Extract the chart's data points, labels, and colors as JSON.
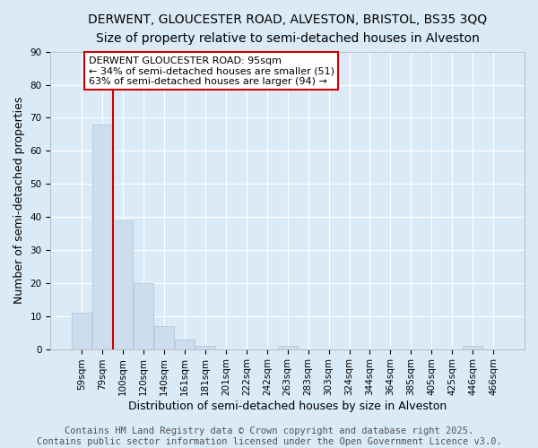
{
  "title_line1": "DERWENT, GLOUCESTER ROAD, ALVESTON, BRISTOL, BS35 3QQ",
  "title_line2": "Size of property relative to semi-detached houses in Alveston",
  "categories": [
    "59sqm",
    "79sqm",
    "100sqm",
    "120sqm",
    "140sqm",
    "161sqm",
    "181sqm",
    "201sqm",
    "222sqm",
    "242sqm",
    "263sqm",
    "283sqm",
    "303sqm",
    "324sqm",
    "344sqm",
    "364sqm",
    "385sqm",
    "405sqm",
    "425sqm",
    "446sqm",
    "466sqm"
  ],
  "values": [
    11,
    68,
    39,
    20,
    7,
    3,
    1,
    0,
    0,
    0,
    1,
    0,
    0,
    0,
    0,
    0,
    0,
    0,
    0,
    1,
    0
  ],
  "bar_color": "#ccdded",
  "bar_edge_color": "#aac4d8",
  "background_color": "#daeaf6",
  "grid_color": "#ffffff",
  "ylabel": "Number of semi-detached properties",
  "xlabel": "Distribution of semi-detached houses by size in Alveston",
  "ylim": [
    0,
    90
  ],
  "yticks": [
    0,
    10,
    20,
    30,
    40,
    50,
    60,
    70,
    80,
    90
  ],
  "red_line_x": 1.5,
  "annotation_text": "DERWENT GLOUCESTER ROAD: 95sqm\n← 34% of semi-detached houses are smaller (51)\n63% of semi-detached houses are larger (94) →",
  "annotation_box_color": "#ffffff",
  "annotation_box_edge_color": "#cc0000",
  "footer_text": "Contains HM Land Registry data © Crown copyright and database right 2025.\nContains public sector information licensed under the Open Government Licence v3.0.",
  "title_fontsize": 10,
  "subtitle_fontsize": 9.5,
  "axis_label_fontsize": 9,
  "tick_fontsize": 7.5,
  "annotation_fontsize": 8,
  "footer_fontsize": 7.5
}
